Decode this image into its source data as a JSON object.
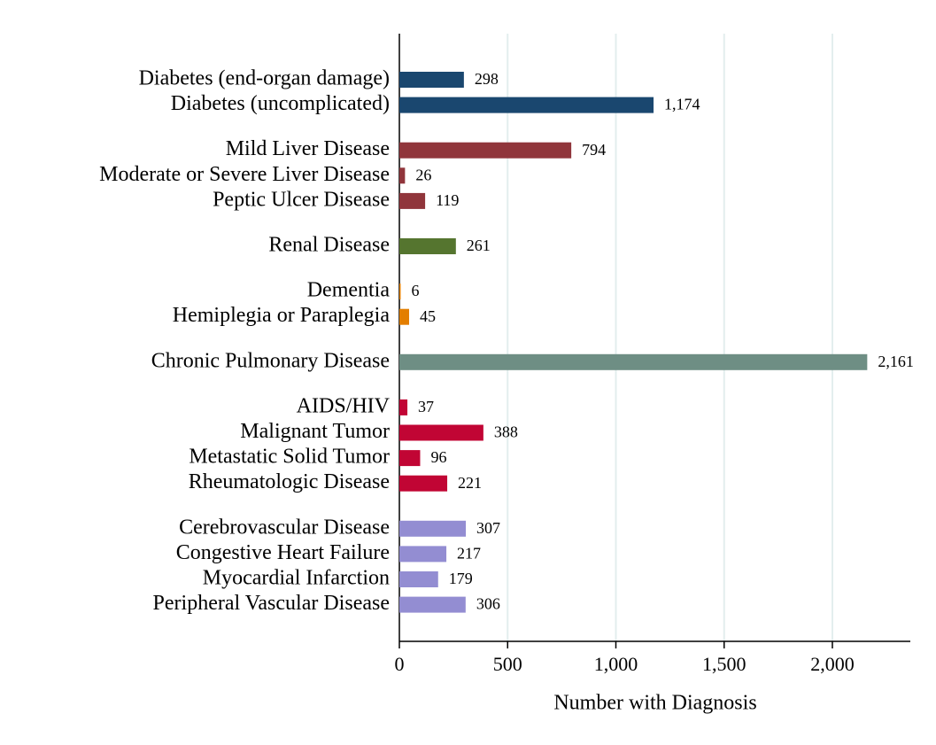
{
  "chart_data": {
    "type": "bar",
    "orientation": "horizontal",
    "x_label": "Number with Diagnosis",
    "xlim": [
      0,
      2360
    ],
    "xticks": [
      0,
      500,
      {
        "value": 1000,
        "label": "1,000"
      },
      {
        "value": 1500,
        "label": "1,500"
      },
      {
        "value": 2000,
        "label": "2,000"
      }
    ],
    "grid": true,
    "groups": [
      {
        "color": "#1a476f",
        "categories": [
          "Diabetes (end-organ damage)",
          "Diabetes (uncomplicated)"
        ],
        "values": [
          298,
          1174
        ],
        "value_labels": [
          "298",
          "1,174"
        ]
      },
      {
        "color": "#90353b",
        "categories": [
          "Mild Liver Disease",
          "Moderate or Severe Liver Disease",
          "Peptic Ulcer Disease"
        ],
        "values": [
          794,
          26,
          119
        ],
        "value_labels": [
          "794",
          "26",
          "119"
        ]
      },
      {
        "color": "#55752f",
        "categories": [
          "Renal Disease"
        ],
        "values": [
          261
        ],
        "value_labels": [
          "261"
        ]
      },
      {
        "color": "#e37e00",
        "categories": [
          "Dementia",
          "Hemiplegia or Paraplegia"
        ],
        "values": [
          6,
          45
        ],
        "value_labels": [
          "6",
          "45"
        ]
      },
      {
        "color": "#6e8e84",
        "categories": [
          "Chronic Pulmonary Disease"
        ],
        "values": [
          2161
        ],
        "value_labels": [
          "2,161"
        ]
      },
      {
        "color": "#c10534",
        "categories": [
          "AIDS/HIV",
          "Malignant Tumor",
          "Metastatic Solid Tumor",
          "Rheumatologic Disease"
        ],
        "values": [
          37,
          388,
          96,
          221
        ],
        "value_labels": [
          "37",
          "388",
          "96",
          "221"
        ]
      },
      {
        "color": "#938dd2",
        "categories": [
          "Cerebrovascular Disease",
          "Congestive Heart Failure",
          "Myocardial Infarction",
          "Peripheral Vascular Disease"
        ],
        "values": [
          307,
          217,
          179,
          306
        ],
        "value_labels": [
          "307",
          "217",
          "179",
          "306"
        ]
      }
    ]
  }
}
